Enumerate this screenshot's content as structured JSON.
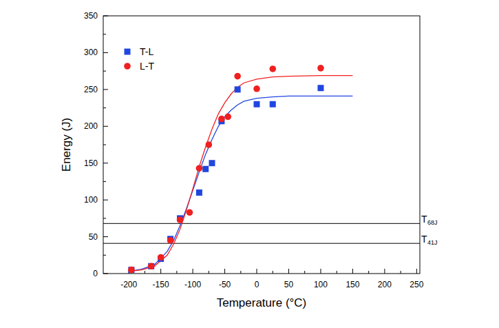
{
  "chart_data": {
    "type": "scatter",
    "x_label": "Temperature (°C)",
    "y_label": "Energy (J)",
    "xlim": [
      -240,
      255
    ],
    "xticks": [
      -200,
      -150,
      -100,
      -50,
      0,
      50,
      100,
      150,
      200,
      250
    ],
    "ylim": [
      0,
      350
    ],
    "yticks": [
      0,
      50,
      100,
      150,
      200,
      250,
      300,
      350
    ],
    "legend": "upper-left",
    "grid": false,
    "series": [
      {
        "name": "T-L",
        "color": "#2046e0",
        "marker": "square",
        "x": [
          -196,
          -165,
          -150,
          -135,
          -120,
          -90,
          -80,
          -70,
          -55,
          -30,
          0,
          25,
          100
        ],
        "values": [
          5,
          10,
          20,
          47,
          75,
          110,
          142,
          150,
          207,
          250,
          230,
          230,
          252
        ],
        "fit": {
          "line_style": "solid",
          "x": [
            -200,
            -180,
            -160,
            -140,
            -130,
            -120,
            -110,
            -100,
            -90,
            -80,
            -70,
            -60,
            -50,
            -40,
            -30,
            -20,
            0,
            25,
            50,
            100,
            150
          ],
          "values": [
            3,
            6,
            12,
            30,
            45,
            65,
            88,
            113,
            138,
            162,
            182,
            200,
            213,
            222,
            229,
            234,
            238,
            240,
            241,
            241,
            241
          ]
        }
      },
      {
        "name": "L-T",
        "color": "#f02020",
        "marker": "circle",
        "x": [
          -196,
          -165,
          -150,
          -135,
          -120,
          -105,
          -90,
          -75,
          -55,
          -45,
          -30,
          0,
          25,
          100
        ],
        "values": [
          5,
          10,
          22,
          45,
          73,
          83,
          143,
          175,
          210,
          213,
          268,
          251,
          278,
          279
        ],
        "fit": {
          "line_style": "solid",
          "x": [
            -200,
            -180,
            -160,
            -140,
            -130,
            -120,
            -110,
            -100,
            -90,
            -80,
            -70,
            -60,
            -50,
            -40,
            -30,
            -20,
            0,
            25,
            50,
            100,
            150
          ],
          "values": [
            3,
            5,
            10,
            25,
            40,
            60,
            86,
            115,
            145,
            172,
            196,
            217,
            232,
            244,
            253,
            259,
            264,
            267,
            268,
            269,
            269
          ]
        }
      }
    ],
    "annotations": [
      {
        "y": 68,
        "label": "T",
        "subscript": "68J"
      },
      {
        "y": 41,
        "label": "T",
        "subscript": "41J"
      }
    ]
  }
}
